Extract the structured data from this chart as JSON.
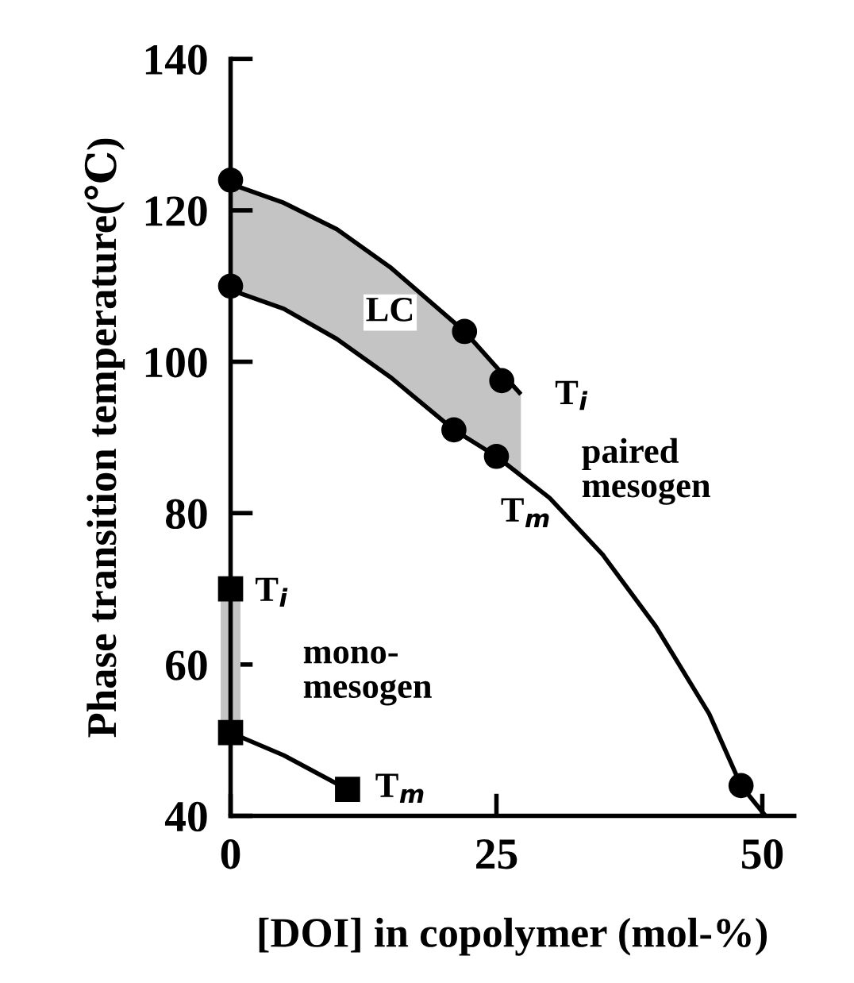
{
  "chart_data": {
    "type": "line",
    "xlabel": "[DOI] in copolymer (mol-%)",
    "ylabel": "Phase transition temperature(℃)",
    "xlim": [
      0,
      53
    ],
    "ylim": [
      40,
      140
    ],
    "xticks": [
      0,
      25,
      50
    ],
    "yticks": [
      40,
      60,
      80,
      100,
      120,
      140
    ],
    "grid": false,
    "legend": false,
    "series": [
      {
        "color": "#000000",
        "marker": "none",
        "x": [
          0,
          5,
          10,
          15,
          22,
          25.5,
          27.3
        ],
        "values": [
          123.5,
          121,
          117.5,
          112.5,
          104,
          98.5,
          95.7
        ],
        "upper": [
          123.5,
          121,
          117.5,
          112.5,
          104,
          98.5,
          95.7
        ],
        "lower": [
          109.5,
          107,
          103,
          98,
          90.2,
          87,
          85
        ]
      },
      {
        "color": "#000000",
        "marker": "none",
        "x": [
          0,
          5,
          10,
          15,
          21,
          25,
          30,
          35,
          40,
          45,
          48,
          50.3
        ],
        "values": [
          109.5,
          107,
          103,
          98,
          91,
          87.5,
          82,
          74.5,
          65,
          53.5,
          44,
          40
        ]
      },
      {
        "color": "#000000",
        "marker": "none",
        "x": [
          0,
          5,
          11
        ],
        "values": [
          51,
          48,
          43.5
        ]
      },
      {
        "color": "#c4c4c4",
        "marker": "none",
        "x": [
          0,
          0
        ],
        "values": [
          51,
          70
        ]
      },
      {
        "type": "scatter",
        "color": "#000000",
        "marker": "circle",
        "x": [
          0,
          22,
          25.5,
          0,
          21,
          25,
          48
        ],
        "values": [
          124,
          104,
          97.5,
          110,
          91,
          87.5,
          44
        ]
      },
      {
        "type": "scatter",
        "color": "#000000",
        "marker": "square",
        "x": [
          0,
          0,
          11
        ],
        "values": [
          70,
          51,
          43.5
        ]
      }
    ],
    "annotations": [
      "LC",
      "T$_{i}$",
      "T$_{m}$",
      "paired\nmesogen",
      "T$_{i}$",
      "mono-\nmesogen",
      "T$_{m}$"
    ]
  }
}
